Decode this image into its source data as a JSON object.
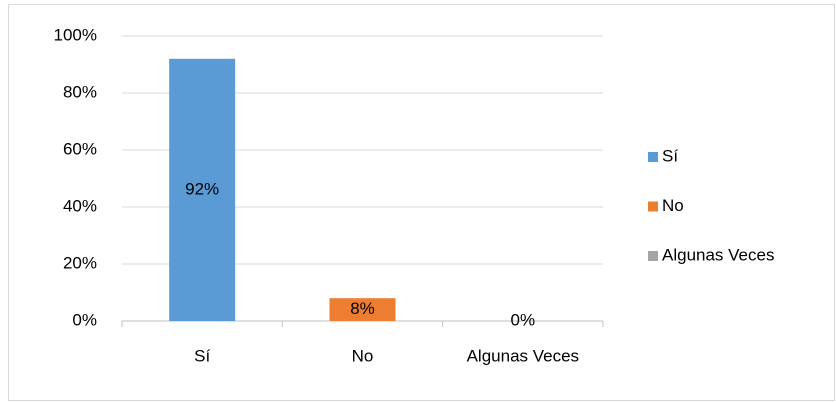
{
  "chart_data": {
    "type": "bar",
    "categories": [
      "Sí",
      "No",
      "Algunas Veces"
    ],
    "values": [
      92,
      8,
      0
    ],
    "value_labels": [
      "92%",
      "8%",
      "0%"
    ],
    "colors": [
      "#5b9bd5",
      "#ed7d31",
      "#a5a5a5"
    ],
    "ylim": [
      0,
      100
    ],
    "yticks": [
      {
        "value": 0,
        "label": "0%"
      },
      {
        "value": 20,
        "label": "20%"
      },
      {
        "value": 40,
        "label": "40%"
      },
      {
        "value": 60,
        "label": "60%"
      },
      {
        "value": 80,
        "label": "80%"
      },
      {
        "value": 100,
        "label": "100%"
      }
    ],
    "grid": true,
    "legend": "right"
  }
}
